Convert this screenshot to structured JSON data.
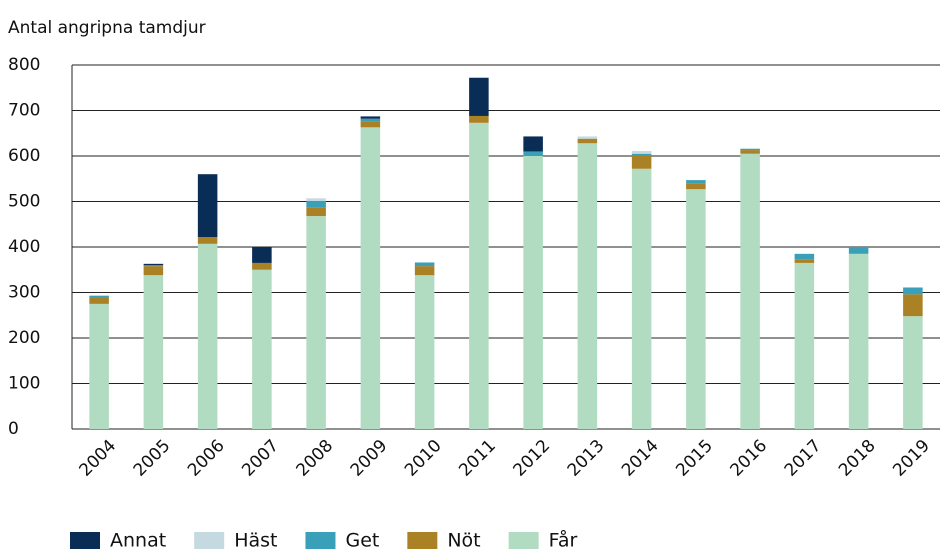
{
  "chart_data": {
    "type": "stacked_bar",
    "y_axis_label": "Antal angripna tamdjur",
    "categories": [
      "2004",
      "2005",
      "2006",
      "2007",
      "2008",
      "2009",
      "2010",
      "2011",
      "2012",
      "2013",
      "2014",
      "2015",
      "2016",
      "2017",
      "2018",
      "2019"
    ],
    "series": [
      {
        "name": "Annat",
        "color": "#0a2d55",
        "values": [
          0,
          3,
          138,
          35,
          0,
          5,
          0,
          84,
          33,
          0,
          0,
          0,
          0,
          0,
          0,
          0
        ]
      },
      {
        "name": "Häst",
        "color": "#c5d9e0",
        "values": [
          0,
          0,
          0,
          0,
          6,
          0,
          0,
          0,
          0,
          5,
          6,
          0,
          0,
          0,
          0,
          0
        ]
      },
      {
        "name": "Get",
        "color": "#3a9fb8",
        "values": [
          3,
          2,
          0,
          0,
          15,
          7,
          8,
          0,
          10,
          0,
          5,
          7,
          3,
          12,
          13,
          15
        ]
      },
      {
        "name": "Nöt",
        "color": "#ab8125",
        "values": [
          15,
          20,
          15,
          15,
          18,
          12,
          20,
          15,
          0,
          10,
          28,
          13,
          8,
          8,
          0,
          48
        ]
      },
      {
        "name": "Får",
        "color": "#b2dcc2",
        "values": [
          275,
          338,
          407,
          350,
          468,
          663,
          338,
          673,
          600,
          628,
          572,
          527,
          605,
          365,
          385,
          248
        ]
      }
    ],
    "ylim": [
      0,
      800
    ],
    "yticks": [
      0,
      100,
      200,
      300,
      400,
      500,
      600,
      700,
      800
    ],
    "grid": true
  }
}
